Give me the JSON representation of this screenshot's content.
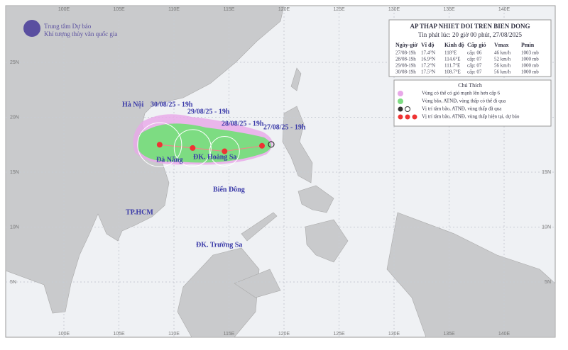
{
  "header": {
    "org_line1": "Trung tâm Dự báo",
    "org_line2": "Khí tượng thủy văn quốc gia"
  },
  "grid": {
    "lon_labels": [
      "100E",
      "105E",
      "110E",
      "115E",
      "120E",
      "125E",
      "130E",
      "135E",
      "140E"
    ],
    "lat_labels": [
      "25N",
      "20N",
      "15N",
      "10N",
      "5N"
    ]
  },
  "info": {
    "title": "AP THAP NHIET DOI TREN BIEN DONG",
    "subtitle": "Tin phát lúc: 20 giờ 00 phút, 27/08/2025",
    "columns": [
      "Ngày-giờ",
      "Vĩ độ",
      "Kinh độ",
      "Cấp gió",
      "Vmax",
      "Pmin"
    ],
    "rows": [
      [
        "27/08-19h",
        "17.4°N",
        "118°E",
        "cấp: 06",
        "46 km/h",
        "1003 mb"
      ],
      [
        "28/08-19h",
        "16.9°N",
        "114.6°E",
        "cấp: 07",
        "52 km/h",
        "1000 mb"
      ],
      [
        "29/08-19h",
        "17.2°N",
        "111.7°E",
        "cấp: 07",
        "56 km/h",
        "1000 mb"
      ],
      [
        "30/08-19h",
        "17.5°N",
        "108.7°E",
        "cấp: 07",
        "56 km/h",
        "1000 mb"
      ]
    ]
  },
  "legend": {
    "title": "Chú Thích",
    "items": [
      "Vùng có thể có gió mạnh lên hơn cấp 6",
      "Vùng bão, ATNĐ, vùng thấp có thể đi qua",
      "Vị trí tâm bão, ATNĐ, vùng thấp đã qua",
      "Vị trí tâm bão, ATNĐ, vùng thấp hiện tại, dự báo"
    ]
  },
  "places": {
    "hanoi": "Hà Nội",
    "danang": "Đà Nẵng",
    "hoangsa": "ĐK. Hoàng Sa",
    "biendong": "Biển Đông",
    "hcm": "TP.HCM",
    "truongsa": "ĐK. Trường Sa"
  },
  "track_labels": [
    "27/08/25 - 19h",
    "28/08/25 - 19h",
    "29/08/25 - 19h",
    "30/08/25 - 19h"
  ]
}
